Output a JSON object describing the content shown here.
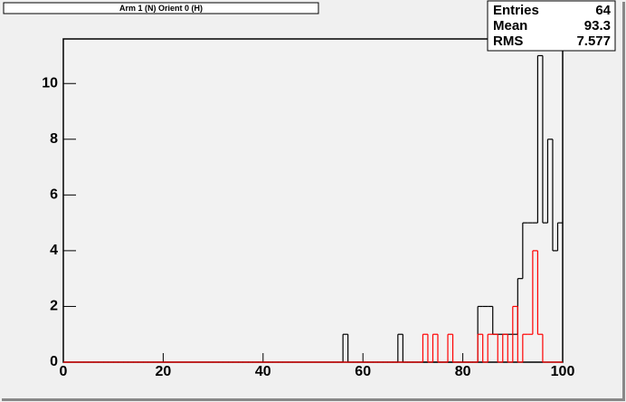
{
  "chart_data": {
    "type": "histogram",
    "title": "Arm 1 (N) Orient 0 (H)",
    "bins": [
      0,
      1,
      2,
      3,
      4,
      5,
      6,
      7,
      8,
      9,
      10,
      11,
      12,
      13,
      14,
      15,
      16,
      17,
      18,
      19,
      20,
      21,
      22,
      23,
      24,
      25,
      26,
      27,
      28,
      29,
      30,
      31,
      32,
      33,
      34,
      35,
      36,
      37,
      38,
      39,
      40,
      41,
      42,
      43,
      44,
      45,
      46,
      47,
      48,
      49,
      50,
      51,
      52,
      53,
      54,
      55,
      56,
      57,
      58,
      59,
      60,
      61,
      62,
      63,
      64,
      65,
      66,
      67,
      68,
      69,
      70,
      71,
      72,
      73,
      74,
      75,
      76,
      77,
      78,
      79,
      80,
      81,
      82,
      83,
      84,
      85,
      86,
      87,
      88,
      89,
      90,
      91,
      92,
      93,
      94,
      95,
      96,
      97,
      98,
      99,
      100
    ],
    "series": [
      {
        "color": "#000000",
        "values": [
          0,
          0,
          0,
          0,
          0,
          0,
          0,
          0,
          0,
          0,
          0,
          0,
          0,
          0,
          0,
          0,
          0,
          0,
          0,
          0,
          0,
          0,
          0,
          0,
          0,
          0,
          0,
          0,
          0,
          0,
          0,
          0,
          0,
          0,
          0,
          0,
          0,
          0,
          0,
          0,
          0,
          0,
          0,
          0,
          0,
          0,
          0,
          0,
          0,
          0,
          0,
          0,
          0,
          0,
          0,
          0,
          1,
          0,
          0,
          0,
          0,
          0,
          0,
          0,
          0,
          0,
          0,
          1,
          0,
          0,
          0,
          0,
          0,
          0,
          0,
          0,
          0,
          0,
          0,
          0,
          0,
          0,
          0,
          2,
          2,
          2,
          1,
          1,
          1,
          1,
          1,
          3,
          5,
          5,
          5,
          11,
          5,
          8,
          4,
          5
        ]
      },
      {
        "color": "#ff0000",
        "values": [
          0,
          0,
          0,
          0,
          0,
          0,
          0,
          0,
          0,
          0,
          0,
          0,
          0,
          0,
          0,
          0,
          0,
          0,
          0,
          0,
          0,
          0,
          0,
          0,
          0,
          0,
          0,
          0,
          0,
          0,
          0,
          0,
          0,
          0,
          0,
          0,
          0,
          0,
          0,
          0,
          0,
          0,
          0,
          0,
          0,
          0,
          0,
          0,
          0,
          0,
          0,
          0,
          0,
          0,
          0,
          0,
          0,
          0,
          0,
          0,
          0,
          0,
          0,
          0,
          0,
          0,
          0,
          0,
          0,
          0,
          0,
          0,
          1,
          0,
          1,
          0,
          0,
          1,
          0,
          0,
          0,
          0,
          0,
          1,
          0,
          1,
          1,
          0,
          1,
          0,
          2,
          0,
          1,
          1,
          4,
          1,
          0,
          0,
          0,
          0
        ]
      }
    ],
    "xlim": [
      0,
      100
    ],
    "xticks": [
      0,
      20,
      40,
      60,
      80,
      100
    ],
    "ylim": [
      0,
      11.6
    ],
    "yticks": [
      0,
      2,
      4,
      6,
      8,
      10
    ],
    "stats": [
      {
        "label": "Entries",
        "value": 64
      },
      {
        "label": "Mean",
        "value": 93.3
      },
      {
        "label": "RMS",
        "value": 7.577
      }
    ]
  }
}
